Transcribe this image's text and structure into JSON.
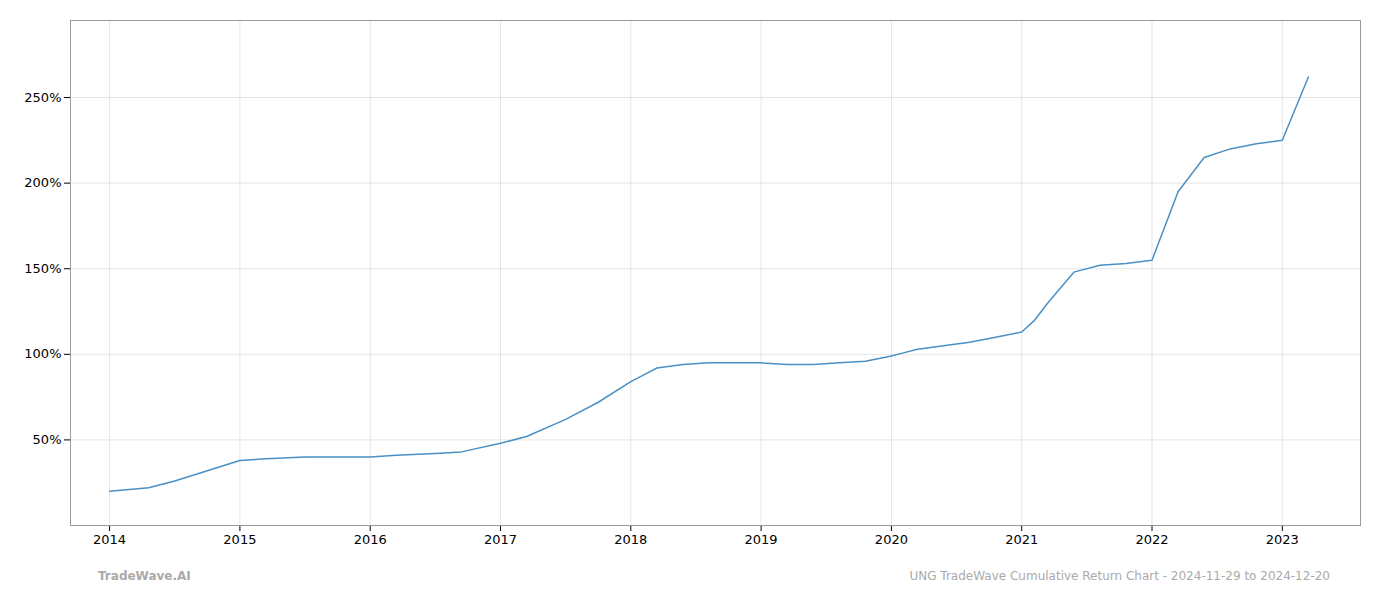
{
  "chart_data": {
    "type": "line",
    "x": [
      2014.0,
      2014.15,
      2014.3,
      2014.5,
      2014.75,
      2015.0,
      2015.2,
      2015.5,
      2015.8,
      2016.0,
      2016.2,
      2016.5,
      2016.7,
      2017.0,
      2017.2,
      2017.5,
      2017.75,
      2018.0,
      2018.1,
      2018.2,
      2018.4,
      2018.6,
      2018.8,
      2019.0,
      2019.2,
      2019.4,
      2019.6,
      2019.8,
      2020.0,
      2020.1,
      2020.2,
      2020.4,
      2020.6,
      2020.8,
      2021.0,
      2021.1,
      2021.2,
      2021.4,
      2021.6,
      2021.8,
      2022.0,
      2022.1,
      2022.2,
      2022.4,
      2022.6,
      2022.8,
      2023.0,
      2023.2
    ],
    "values": [
      20,
      21,
      22,
      26,
      32,
      38,
      39,
      40,
      40,
      40,
      41,
      42,
      43,
      48,
      52,
      62,
      72,
      84,
      88,
      92,
      94,
      95,
      95,
      95,
      94,
      94,
      95,
      96,
      99,
      101,
      103,
      105,
      107,
      110,
      113,
      120,
      130,
      148,
      152,
      153,
      155,
      175,
      195,
      215,
      220,
      223,
      225,
      262
    ],
    "color": "#4a90c4",
    "xlim": [
      2013.7,
      2023.6
    ],
    "xticks": [
      2014,
      2015,
      2016,
      2017,
      2018,
      2019,
      2020,
      2021,
      2022,
      2023
    ],
    "ylim": [
      0,
      295
    ],
    "yticks": [
      {
        "value": 50,
        "label": "50%"
      },
      {
        "value": 100,
        "label": "100%"
      },
      {
        "value": 150,
        "label": "150%"
      },
      {
        "value": 200,
        "label": "200%"
      },
      {
        "value": 250,
        "label": "250%"
      }
    ],
    "grid": true,
    "annotations": [
      "TradeWave.AI",
      "UNG TradeWave Cumulative Return Chart - 2024-11-29 to 2024-12-20"
    ]
  }
}
